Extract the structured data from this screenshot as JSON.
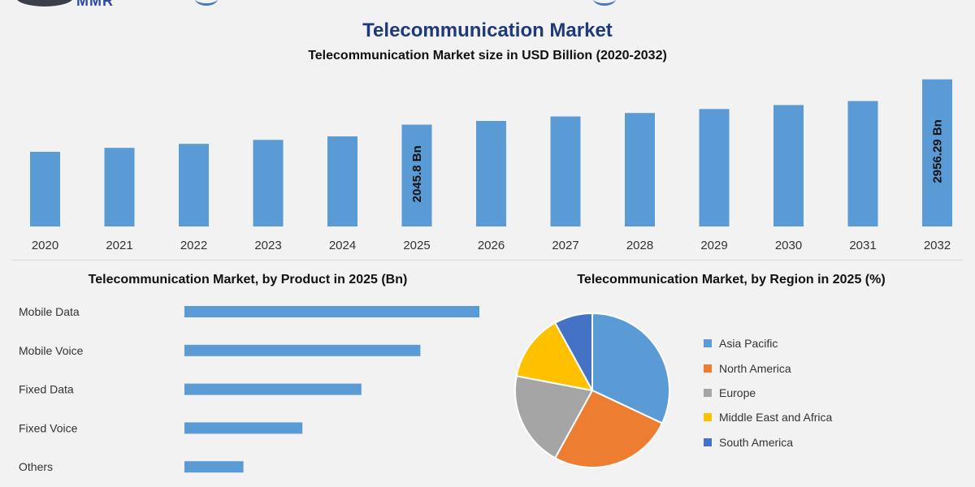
{
  "header": {
    "logo_text": "MMR",
    "title": "Telecommunication Market",
    "subtitle": "Telecommunication Market size in USD Billion (2020-2032)"
  },
  "chart_data": [
    {
      "type": "bar",
      "categories": [
        "2020",
        "2021",
        "2022",
        "2023",
        "2024",
        "2025",
        "2026",
        "2027",
        "2028",
        "2029",
        "2030",
        "2031",
        "2032"
      ],
      "values": [
        1500,
        1580,
        1660,
        1740,
        1810,
        2045.8,
        2120,
        2210,
        2280,
        2360,
        2440,
        2520,
        2956.29
      ],
      "data_labels": [
        {
          "index": 5,
          "text": "2045.8 Bn"
        },
        {
          "index": 12,
          "text": "2956.29 Bn"
        }
      ],
      "title": "Telecommunication Market size in USD Billion (2020-2032)",
      "color": "#5b9bd5"
    },
    {
      "type": "bar",
      "orientation": "horizontal",
      "title": "Telecommunication Market, by Product in 2025 (Bn)",
      "categories": [
        "Mobile Data",
        "Mobile Voice",
        "Fixed Data",
        "Fixed Voice",
        "Others"
      ],
      "values": [
        500,
        400,
        300,
        200,
        100
      ],
      "color": "#5b9bd5"
    },
    {
      "type": "pie",
      "title": "Telecommunication Market, by Region in 2025 (%)",
      "labels": [
        "Asia Pacific",
        "North America",
        "Europe",
        "Middle East and Africa",
        "South America"
      ],
      "values": [
        32,
        26,
        20,
        14,
        8
      ],
      "colors": [
        "#5b9bd5",
        "#ed7d31",
        "#a5a5a5",
        "#ffc000",
        "#4472c4"
      ]
    }
  ]
}
